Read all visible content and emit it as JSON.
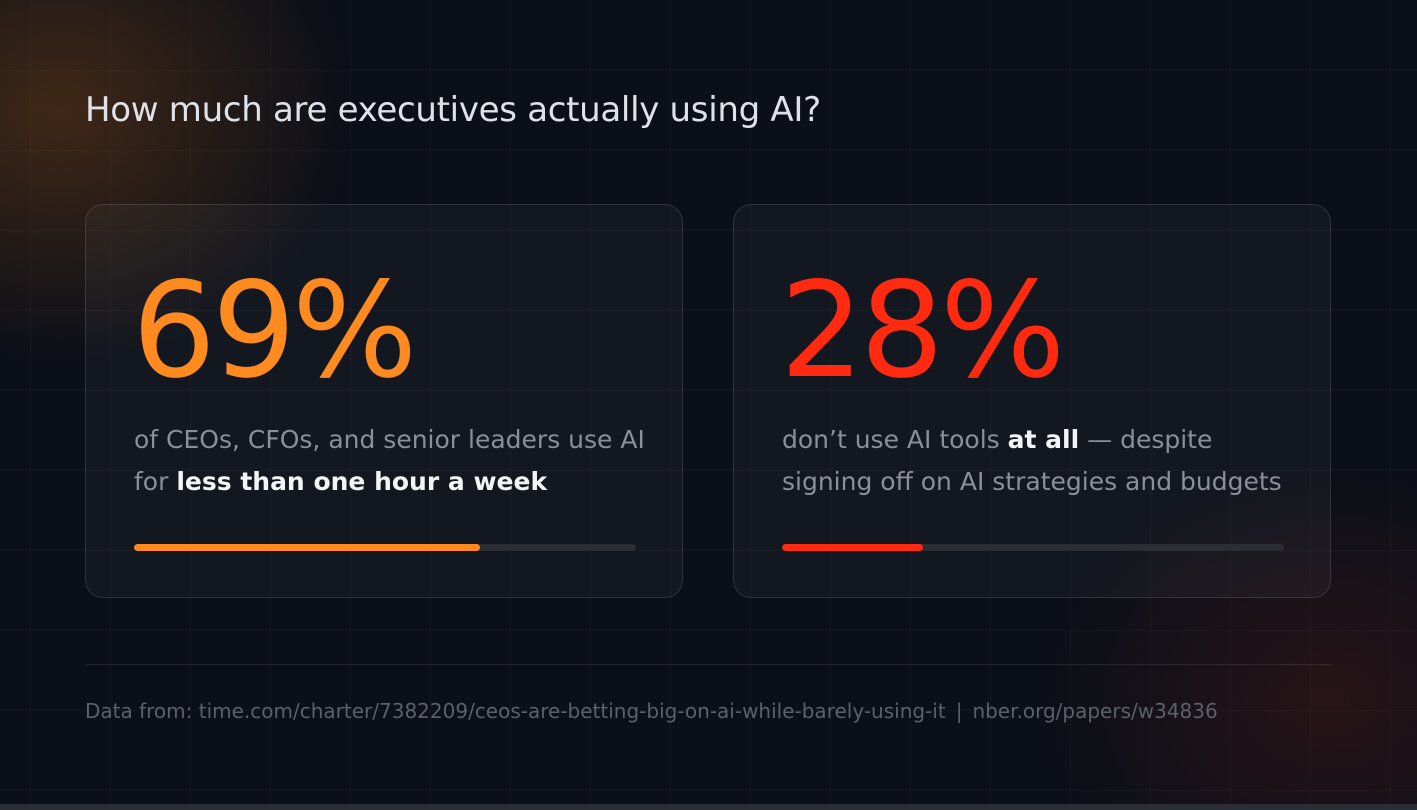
{
  "title": "How much are executives actually using AI?",
  "colors": {
    "orange": "#ff8a1f",
    "red": "#ff2a10"
  },
  "cards": [
    {
      "stat": "69%",
      "percent": 69,
      "color": "#ff8a1f",
      "desc_pre": "of CEOs, CFOs, and senior leaders use AI for ",
      "desc_bold": "less than one hour a week",
      "desc_post": ""
    },
    {
      "stat": "28%",
      "percent": 28,
      "color": "#ff2a10",
      "desc_pre": "don’t use AI tools ",
      "desc_bold": "at all",
      "desc_post": " — despite signing off on AI strategies and budgets"
    }
  ],
  "source": {
    "prefix": "Data from: ",
    "link1": "time.com/charter/7382209/ceos-are-betting-big-on-ai-while-barely-using-it",
    "separator": "|",
    "link2": "nber.org/papers/w34836"
  }
}
